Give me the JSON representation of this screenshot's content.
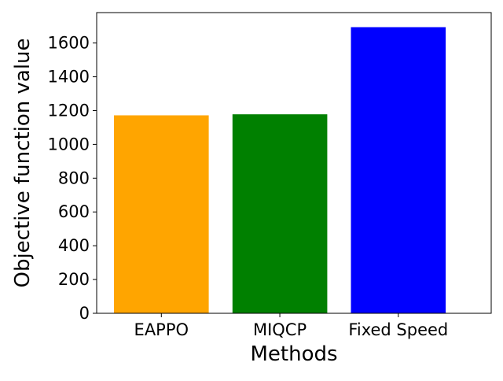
{
  "chart_data": {
    "type": "bar",
    "title": "",
    "xlabel": "Methods",
    "ylabel": "Objective function value",
    "categories": [
      "EAPPO",
      "MIQCP",
      "Fixed Speed"
    ],
    "values": [
      1172,
      1178,
      1694
    ],
    "colors": [
      "#FFA500",
      "#008000",
      "#0000FF"
    ],
    "ylim": [
      0,
      1780
    ],
    "yticks": [
      0,
      200,
      400,
      600,
      800,
      1000,
      1200,
      1400,
      1600
    ],
    "ytick_labels": [
      "0",
      "200",
      "400",
      "600",
      "800",
      "1000",
      "1200",
      "1400",
      "1600"
    ],
    "grid": false,
    "legend": "none"
  }
}
